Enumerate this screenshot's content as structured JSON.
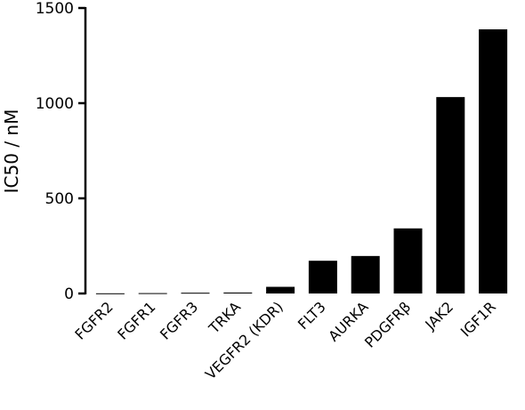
{
  "chart_data": {
    "type": "bar",
    "title": "",
    "xlabel": "",
    "ylabel": "IC50 / nM",
    "ylim": [
      0,
      1500
    ],
    "yticks": [
      0,
      500,
      1000,
      1500
    ],
    "grid": false,
    "bar_color": "#000000",
    "categories": [
      "FGFR2",
      "FGFR1",
      "FGFR3",
      "TRKA",
      "VEGFR2 (KDR)",
      "FLT3",
      "AURKA",
      "PDGFRβ",
      "JAK2",
      "IGF1R"
    ],
    "values": [
      1,
      2,
      4,
      5,
      35,
      172,
      197,
      342,
      1032,
      1388
    ]
  }
}
